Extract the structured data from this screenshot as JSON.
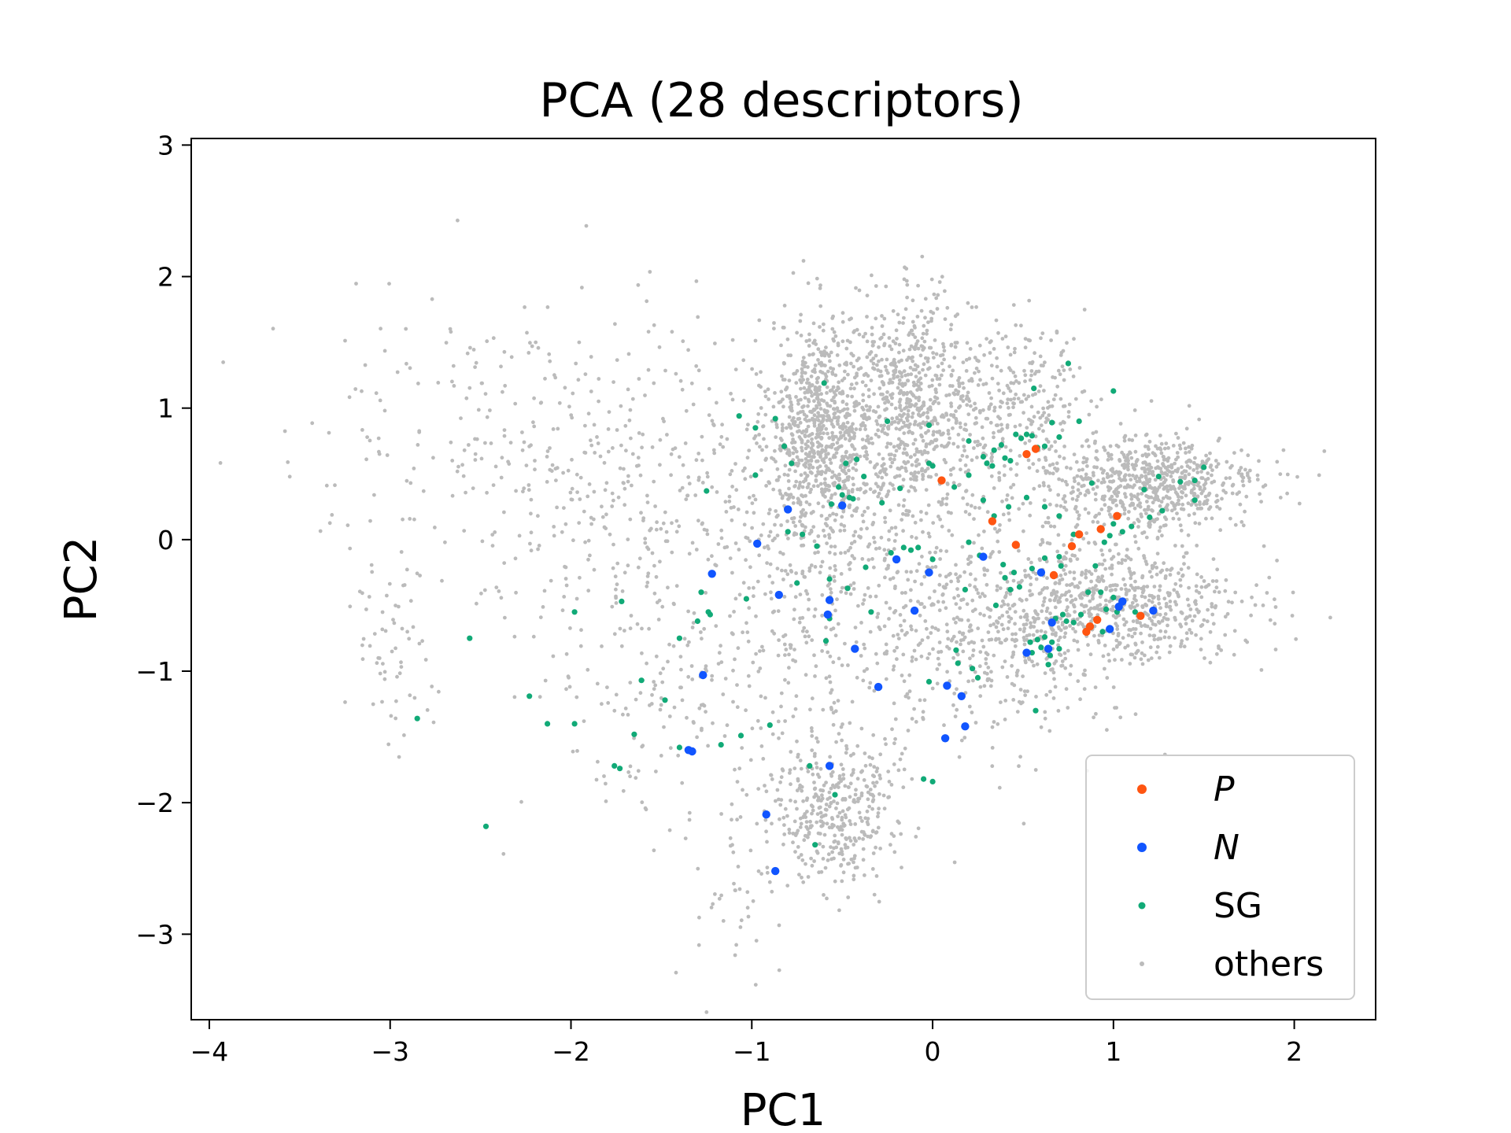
{
  "chart_data": {
    "type": "scatter",
    "title": "PCA (28 descriptors)",
    "xlabel": "PC1",
    "ylabel": "PC2",
    "xlim": [
      -4.1,
      2.45
    ],
    "ylim": [
      -3.65,
      3.05
    ],
    "xticks": [
      -4,
      -3,
      -2,
      -1,
      0,
      1,
      2
    ],
    "yticks": [
      -3,
      -2,
      -1,
      0,
      1,
      2,
      3
    ],
    "xtick_labels": [
      "−4",
      "−3",
      "−2",
      "−1",
      "0",
      "1",
      "2"
    ],
    "ytick_labels": [
      "−3",
      "−2",
      "−1",
      "0",
      "1",
      "2",
      "3"
    ],
    "grid": false,
    "legend_position": "bottom-right",
    "series": [
      {
        "name": "P",
        "color": "#ff5511",
        "marker_size": "medium",
        "points": [
          [
            0.05,
            0.45
          ],
          [
            0.52,
            0.65
          ],
          [
            0.57,
            0.69
          ],
          [
            0.33,
            0.14
          ],
          [
            0.46,
            -0.04
          ],
          [
            0.67,
            -0.27
          ],
          [
            0.77,
            -0.05
          ],
          [
            0.81,
            0.04
          ],
          [
            0.93,
            0.08
          ],
          [
            1.02,
            0.18
          ],
          [
            0.85,
            -0.7
          ],
          [
            0.87,
            -0.66
          ],
          [
            0.91,
            -0.61
          ],
          [
            1.15,
            -0.58
          ]
        ]
      },
      {
        "name": "N",
        "color": "#1155ff",
        "marker_size": "medium",
        "points": [
          [
            -0.8,
            0.23
          ],
          [
            -0.97,
            -0.03
          ],
          [
            -1.22,
            -0.26
          ],
          [
            -0.85,
            -0.42
          ],
          [
            -0.57,
            -0.46
          ],
          [
            -0.58,
            -0.57
          ],
          [
            -0.5,
            0.26
          ],
          [
            -0.2,
            -0.15
          ],
          [
            -0.02,
            -0.25
          ],
          [
            -0.1,
            -0.54
          ],
          [
            -0.43,
            -0.83
          ],
          [
            -0.3,
            -1.12
          ],
          [
            0.08,
            -1.11
          ],
          [
            0.16,
            -1.19
          ],
          [
            0.18,
            -1.42
          ],
          [
            0.07,
            -1.51
          ],
          [
            -1.27,
            -1.03
          ],
          [
            -1.35,
            -1.6
          ],
          [
            -1.33,
            -1.61
          ],
          [
            -0.57,
            -1.72
          ],
          [
            -0.92,
            -2.09
          ],
          [
            -0.87,
            -2.52
          ],
          [
            0.28,
            -0.13
          ],
          [
            0.6,
            -0.25
          ],
          [
            0.66,
            -0.63
          ],
          [
            0.52,
            -0.86
          ],
          [
            0.64,
            -0.83
          ],
          [
            1.03,
            -0.51
          ],
          [
            1.05,
            -0.47
          ],
          [
            1.22,
            -0.54
          ],
          [
            0.98,
            -0.68
          ]
        ]
      },
      {
        "name": "SG",
        "color": "#11aa77",
        "marker_size": "small",
        "points": [
          [
            -0.6,
            1.19
          ],
          [
            -1.07,
            0.94
          ],
          [
            -0.98,
            0.85
          ],
          [
            -0.87,
            0.92
          ],
          [
            -0.82,
            0.71
          ],
          [
            -0.78,
            0.58
          ],
          [
            -0.98,
            0.49
          ],
          [
            -1.25,
            0.37
          ],
          [
            -0.8,
            0.06
          ],
          [
            -0.72,
            0.04
          ],
          [
            -0.48,
            0.58
          ],
          [
            -0.42,
            0.61
          ],
          [
            -0.38,
            0.48
          ],
          [
            -0.25,
            0.9
          ],
          [
            -0.52,
            0.4
          ],
          [
            -0.5,
            0.34
          ],
          [
            -0.46,
            0.32
          ],
          [
            -0.56,
            0.27
          ],
          [
            -0.44,
            0.31
          ],
          [
            -0.28,
            0.28
          ],
          [
            -0.18,
            0.39
          ],
          [
            -0.02,
            0.58
          ],
          [
            0.0,
            0.56
          ],
          [
            0.12,
            0.4
          ],
          [
            0.2,
            0.49
          ],
          [
            -0.02,
            0.87
          ],
          [
            0.2,
            0.75
          ],
          [
            0.28,
            0.63
          ],
          [
            0.3,
            0.58
          ],
          [
            0.33,
            0.56
          ],
          [
            0.34,
            0.68
          ],
          [
            0.38,
            0.72
          ],
          [
            0.4,
            0.62
          ],
          [
            0.43,
            0.6
          ],
          [
            0.46,
            0.8
          ],
          [
            0.49,
            0.77
          ],
          [
            0.52,
            0.8
          ],
          [
            0.55,
            0.79
          ],
          [
            0.58,
            0.7
          ],
          [
            0.62,
            0.71
          ],
          [
            0.66,
            0.89
          ],
          [
            0.7,
            0.78
          ],
          [
            0.75,
            1.34
          ],
          [
            0.56,
            1.15
          ],
          [
            0.81,
            0.9
          ],
          [
            1.0,
            1.13
          ],
          [
            0.88,
            0.43
          ],
          [
            0.78,
            0.04
          ],
          [
            0.95,
            -0.02
          ],
          [
            0.98,
            0.03
          ],
          [
            1.0,
            0.12
          ],
          [
            1.05,
            0.06
          ],
          [
            1.1,
            0.1
          ],
          [
            1.17,
            0.38
          ],
          [
            1.25,
            0.48
          ],
          [
            1.37,
            0.44
          ],
          [
            1.45,
            0.45
          ],
          [
            1.5,
            0.55
          ],
          [
            1.45,
            0.3
          ],
          [
            1.27,
            0.22
          ],
          [
            1.2,
            0.17
          ],
          [
            0.28,
            0.3
          ],
          [
            0.34,
            0.18
          ],
          [
            0.42,
            0.25
          ],
          [
            0.52,
            0.32
          ],
          [
            0.62,
            0.25
          ],
          [
            0.7,
            0.18
          ],
          [
            0.2,
            -0.02
          ],
          [
            0.26,
            -0.12
          ],
          [
            0.39,
            -0.19
          ],
          [
            0.45,
            -0.25
          ],
          [
            0.43,
            -0.38
          ],
          [
            0.48,
            -0.36
          ],
          [
            0.4,
            -0.29
          ],
          [
            0.35,
            -0.5
          ],
          [
            0.55,
            -0.22
          ],
          [
            0.62,
            -0.14
          ],
          [
            0.7,
            -0.13
          ],
          [
            0.18,
            -0.38
          ],
          [
            0.0,
            -0.15
          ],
          [
            -0.12,
            -0.08
          ],
          [
            -0.08,
            -0.06
          ],
          [
            -0.16,
            -0.06
          ],
          [
            -0.23,
            -0.1
          ],
          [
            -0.37,
            -0.21
          ],
          [
            -0.47,
            -0.37
          ],
          [
            -0.57,
            -0.6
          ],
          [
            -0.59,
            -0.77
          ],
          [
            -0.34,
            -0.55
          ],
          [
            -0.57,
            -0.3
          ],
          [
            -0.64,
            -0.05
          ],
          [
            -0.75,
            -0.33
          ],
          [
            -1.03,
            -0.45
          ],
          [
            -1.23,
            -0.57
          ],
          [
            -1.24,
            -0.55
          ],
          [
            -1.3,
            -0.62
          ],
          [
            -1.28,
            -0.4
          ],
          [
            -1.72,
            -0.47
          ],
          [
            -1.98,
            -0.55
          ],
          [
            -1.4,
            -0.75
          ],
          [
            -2.56,
            -0.75
          ],
          [
            -2.85,
            -1.36
          ],
          [
            -2.23,
            -1.19
          ],
          [
            -2.13,
            -1.4
          ],
          [
            -1.98,
            -1.4
          ],
          [
            -1.61,
            -1.07
          ],
          [
            -1.48,
            -1.22
          ],
          [
            -1.65,
            -1.48
          ],
          [
            -1.4,
            -1.58
          ],
          [
            -1.76,
            -1.72
          ],
          [
            -1.73,
            -1.74
          ],
          [
            -1.17,
            -1.56
          ],
          [
            -1.06,
            -1.49
          ],
          [
            -0.9,
            -1.41
          ],
          [
            -0.68,
            -1.72
          ],
          [
            -0.54,
            -1.94
          ],
          [
            -0.65,
            -2.32
          ],
          [
            -2.47,
            -2.18
          ],
          [
            -0.02,
            -1.08
          ],
          [
            0.13,
            -0.84
          ],
          [
            0.14,
            -0.94
          ],
          [
            0.22,
            -0.98
          ],
          [
            0.25,
            -1.05
          ],
          [
            -0.05,
            -1.82
          ],
          [
            0.0,
            -1.84
          ],
          [
            0.54,
            -0.78
          ],
          [
            0.58,
            -0.76
          ],
          [
            0.62,
            -0.74
          ],
          [
            0.66,
            -0.78
          ],
          [
            0.65,
            -0.88
          ],
          [
            0.55,
            -0.86
          ],
          [
            0.6,
            -0.82
          ],
          [
            0.64,
            -0.95
          ],
          [
            0.68,
            -0.6
          ],
          [
            0.72,
            -0.57
          ],
          [
            0.78,
            -0.63
          ],
          [
            0.82,
            -0.57
          ],
          [
            0.86,
            -0.4
          ],
          [
            0.93,
            -0.4
          ],
          [
            0.96,
            -0.53
          ],
          [
            1.0,
            -0.44
          ],
          [
            0.94,
            -0.7
          ],
          [
            1.02,
            -0.55
          ],
          [
            0.71,
            -0.2
          ],
          [
            0.57,
            -1.3
          ],
          [
            0.74,
            -0.62
          ],
          [
            0.9,
            -0.2
          ],
          [
            0.7,
            -0.83
          ],
          [
            1.12,
            -0.55
          ]
        ]
      },
      {
        "name": "others",
        "color": "#bbbbbb",
        "marker_size": "tiny",
        "clusters": [
          {
            "center": [
              -0.62,
              0.85
            ],
            "spread": [
              0.14,
              0.42
            ],
            "count": 700
          },
          {
            "center": [
              -0.12,
              1.08
            ],
            "spread": [
              0.17,
              0.38
            ],
            "count": 600
          },
          {
            "center": [
              1.22,
              0.42
            ],
            "spread": [
              0.3,
              0.18
            ],
            "count": 650
          },
          {
            "center": [
              1.0,
              -0.5
            ],
            "spread": [
              0.38,
              0.22
            ],
            "count": 650
          },
          {
            "center": [
              -0.55,
              -2.05
            ],
            "spread": [
              0.18,
              0.3
            ],
            "count": 400
          },
          {
            "center": [
              0.48,
              1.05
            ],
            "spread": [
              0.18,
              0.32
            ],
            "count": 250
          },
          {
            "center": [
              -0.25,
              0.05
            ],
            "spread": [
              0.65,
              0.6
            ],
            "count": 700
          },
          {
            "center": [
              0.35,
              -0.8
            ],
            "spread": [
              0.4,
              0.4
            ],
            "count": 300
          },
          {
            "center": [
              -1.55,
              0.35
            ],
            "spread": [
              0.55,
              0.65
            ],
            "count": 350
          },
          {
            "center": [
              -2.55,
              0.7
            ],
            "spread": [
              0.55,
              0.6
            ],
            "count": 160
          },
          {
            "center": [
              -2.95,
              -0.85
            ],
            "spread": [
              0.12,
              0.45
            ],
            "count": 60
          },
          {
            "center": [
              -1.2,
              -1.2
            ],
            "spread": [
              0.45,
              0.5
            ],
            "count": 200
          },
          {
            "center": [
              -1.1,
              -2.7
            ],
            "spread": [
              0.12,
              0.35
            ],
            "count": 40
          }
        ]
      }
    ]
  }
}
